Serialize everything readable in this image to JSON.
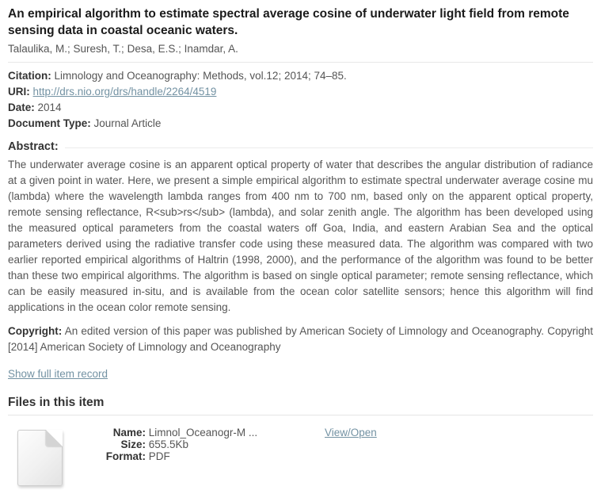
{
  "header": {
    "title": "An empirical algorithm to estimate spectral average cosine of underwater light field from remote sensing data in coastal oceanic waters.",
    "authors": "Talaulika, M.; Suresh, T.; Desa, E.S.; Inamdar, A."
  },
  "metadata": {
    "citation_label": "Citation:",
    "citation": "Limnology and Oceanography: Methods, vol.12; 2014; 74–85.",
    "uri_label": "URI:",
    "uri": "http://drs.nio.org/drs/handle/2264/4519",
    "date_label": "Date:",
    "date": "2014",
    "doctype_label": "Document Type:",
    "doctype": "Journal Article"
  },
  "abstract": {
    "label": "Abstract:",
    "text": "The underwater average cosine is an apparent optical property of water that describes the angular distribution of radiance at a given point in water. Here, we present a simple empirical algorithm to estimate spectral underwater average cosine mu (lambda) where the wavelength lambda ranges from 400 nm to 700 nm, based only on the apparent optical property, remote sensing reflectance, R<sub>rs</sub> (lambda), and solar zenith angle. The algorithm has been developed using the measured optical parameters from the coastal waters off Goa, India, and eastern Arabian Sea and the optical parameters derived using the radiative transfer code using these measured data. The algorithm was compared with two earlier reported empirical algorithms of Haltrin (1998, 2000), and the performance of the algorithm was found to be better than these two empirical algorithms. The algorithm is based on single optical parameter; remote sensing reflectance, which can be easily measured in-situ, and is available from the ocean color satellite sensors; hence this algorithm will find applications in the ocean color remote sensing."
  },
  "copyright": {
    "label": "Copyright:",
    "text": "An edited version of this paper was published by American Society of Limnology and Oceanography. Copyright [2014] American Society of Limnology and Oceanography"
  },
  "links": {
    "show_full_record": "Show full item record"
  },
  "files_section": {
    "heading": "Files in this item",
    "file": {
      "icon": "blank-page-with-folded-corner",
      "name_label": "Name:",
      "name": "Limnol_Oceanogr-M ...",
      "size_label": "Size:",
      "size": "655.5Kb",
      "format_label": "Format:",
      "format": "PDF",
      "view_label": "View/Open"
    }
  },
  "colors": {
    "link": "#7392a3",
    "label": "#333333",
    "body_text": "#555555",
    "title_text": "#1b1b1b",
    "divider": "#e8e8e8"
  }
}
